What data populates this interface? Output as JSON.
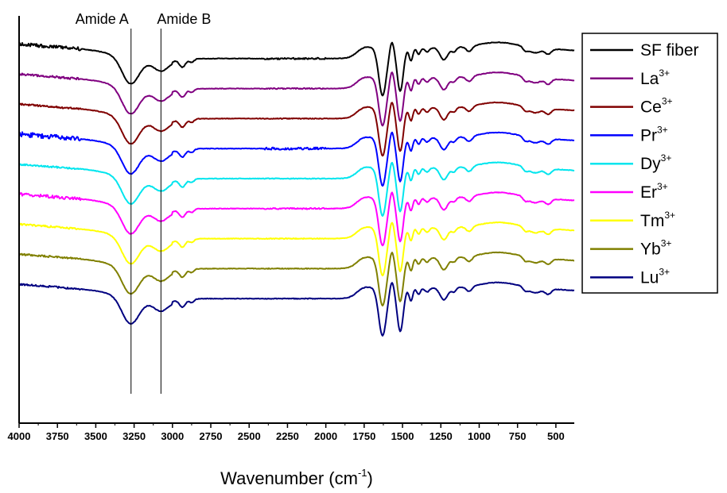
{
  "chart_data": {
    "type": "line",
    "xlabel": "Wavenumber (cm",
    "xlabel_sup": "-1",
    "xlabel_end": ")",
    "ylabel": "",
    "xlim": [
      4000,
      380
    ],
    "xticks": [
      4000,
      3750,
      3500,
      3250,
      3000,
      2750,
      2500,
      2250,
      2000,
      1750,
      1500,
      1250,
      1000,
      750,
      500
    ],
    "annotations": [
      {
        "label": "Amide A",
        "x": 3270
      },
      {
        "label": "Amide B",
        "x": 3075
      }
    ],
    "legend_position": "right",
    "series": [
      {
        "name": "SF fiber",
        "sup": "",
        "color": "#000000",
        "offset": 0,
        "noise": 1
      },
      {
        "name": "La",
        "sup": "3+",
        "color": "#800080",
        "offset": 1,
        "noise": 0.5
      },
      {
        "name": "Ce",
        "sup": "3+",
        "color": "#800000",
        "offset": 2,
        "noise": 0.3
      },
      {
        "name": "Pr",
        "sup": "3+",
        "color": "#0000ff",
        "offset": 3,
        "noise": 1.6
      },
      {
        "name": "Dy",
        "sup": "3+",
        "color": "#00e5ee",
        "offset": 4,
        "noise": 0.3
      },
      {
        "name": "Er",
        "sup": "3+",
        "color": "#ff00ff",
        "offset": 5,
        "noise": 0.8
      },
      {
        "name": "Tm",
        "sup": "3+",
        "color": "#ffff00",
        "offset": 6,
        "noise": 0.3
      },
      {
        "name": "Yb",
        "sup": "3+",
        "color": "#808000",
        "offset": 7,
        "noise": 0.3
      },
      {
        "name": "Lu",
        "sup": "3+",
        "color": "#000080",
        "offset": 8,
        "noise": 0.3
      }
    ]
  }
}
